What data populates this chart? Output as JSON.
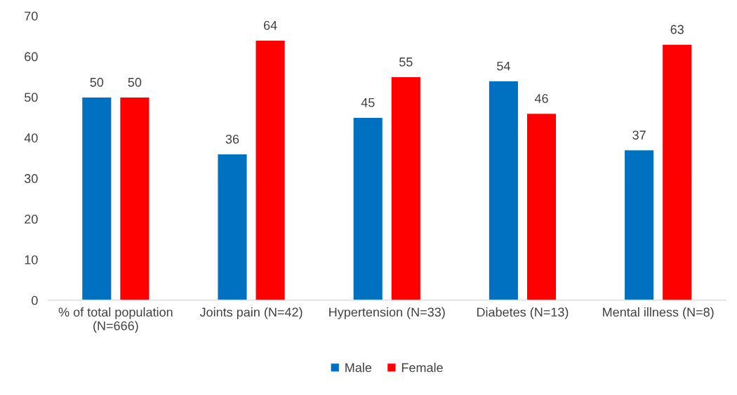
{
  "chart_data": {
    "type": "bar",
    "categories": [
      "% of total population (N=666)",
      "Joints pain (N=42)",
      "Hypertension (N=33)",
      "Diabetes (N=13)",
      "Mental illness (N=8)"
    ],
    "series": [
      {
        "name": "Male",
        "color": "#0070c0",
        "values": [
          50,
          36,
          45,
          54,
          37
        ]
      },
      {
        "name": "Female",
        "color": "#ff0000",
        "values": [
          50,
          64,
          55,
          46,
          63
        ]
      }
    ],
    "ylim": [
      0,
      70
    ],
    "yticks": [
      0,
      10,
      20,
      30,
      40,
      50,
      60,
      70
    ],
    "data_labels": true,
    "legend": "bottom",
    "grid": false
  }
}
